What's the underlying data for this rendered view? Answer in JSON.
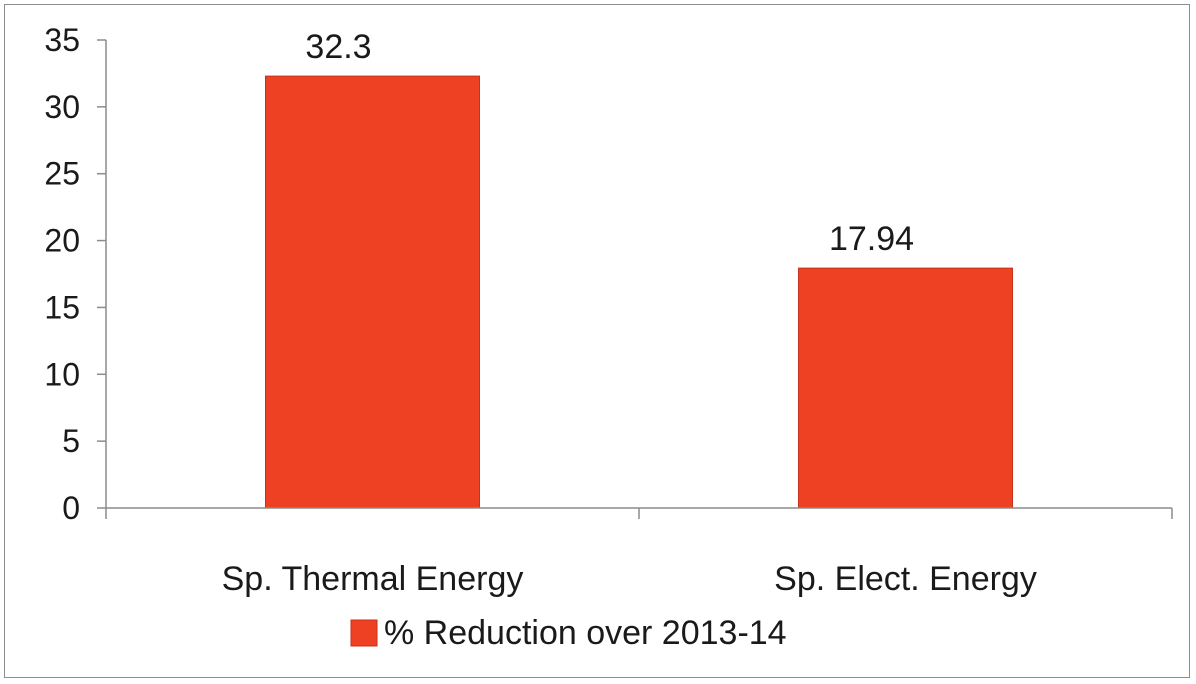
{
  "chart_data": {
    "type": "bar",
    "categories": [
      "Sp. Thermal Energy",
      "Sp. Elect. Energy"
    ],
    "series": [
      {
        "name": "% Reduction over 2013-14",
        "values": [
          32.3,
          17.94
        ],
        "color": "#ee4023"
      }
    ],
    "data_labels": [
      "32.3",
      "17.94"
    ],
    "ylim": [
      0,
      35
    ],
    "yticks": [
      0,
      5,
      10,
      15,
      20,
      25,
      30,
      35
    ],
    "grid": false,
    "legend_position": "bottom"
  }
}
